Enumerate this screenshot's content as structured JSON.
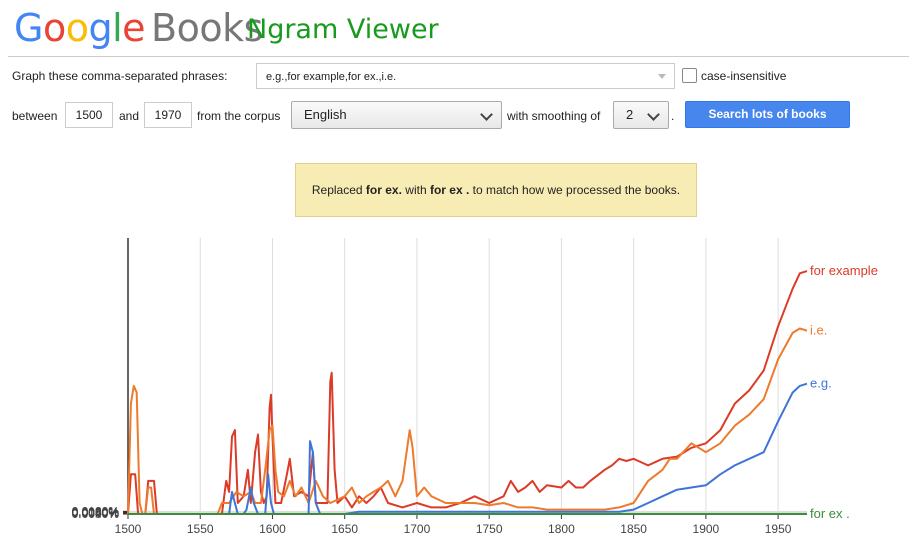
{
  "header": {
    "logo_google": "Google",
    "logo_books": "Books",
    "subtitle": "Ngram Viewer"
  },
  "form": {
    "phrases_label": "Graph these comma-separated phrases:",
    "phrases_value": "e.g.,for example,for ex.,i.e.",
    "case_insensitive_label": "case-insensitive",
    "case_insensitive_checked": false,
    "between_label": "between",
    "start_year": "1500",
    "and_label": "and",
    "end_year": "1970",
    "corpus_label": "from the corpus",
    "corpus_value": "English",
    "smoothing_label": "with smoothing of",
    "smoothing_value": "2",
    "period": ".",
    "search_button": "Search lots of books"
  },
  "notice": {
    "prefix": "Replaced",
    "from_phrase": "for ex.",
    "middle": "with",
    "to_phrase": "for ex .",
    "suffix": "to match how we processed the books."
  },
  "chart_data": {
    "type": "line",
    "title": "",
    "xlabel": "",
    "ylabel": "",
    "xlim": [
      1500,
      1970
    ],
    "ylim": [
      0,
      0.0125
    ],
    "x_ticks": [
      "1500",
      "1550",
      "1600",
      "1650",
      "1700",
      "1750",
      "1800",
      "1850",
      "1900",
      "1950"
    ],
    "y_ticks": [
      "0.0000%",
      "0.0020%",
      "0.0040%",
      "0.0060%",
      "0.0080%",
      "0.0100%",
      "0.0120%"
    ],
    "grid": true,
    "legend_placement": "right-end-of-lines",
    "series": [
      {
        "name": "for example",
        "color": "#db3b27",
        "points": [
          [
            1500,
            0
          ],
          [
            1502,
            0.0018
          ],
          [
            1505,
            0.0018
          ],
          [
            1507,
            0
          ],
          [
            1512,
            0
          ],
          [
            1514,
            0.0015
          ],
          [
            1518,
            0.0015
          ],
          [
            1520,
            0
          ],
          [
            1565,
            0
          ],
          [
            1568,
            0.0015
          ],
          [
            1570,
            0.001
          ],
          [
            1572,
            0.0035
          ],
          [
            1574,
            0.0038
          ],
          [
            1576,
            0.0005
          ],
          [
            1580,
            0.0008
          ],
          [
            1583,
            0.002
          ],
          [
            1585,
            0.0005
          ],
          [
            1588,
            0.0028
          ],
          [
            1590,
            0.0036
          ],
          [
            1592,
            0.001
          ],
          [
            1594,
            0.0005
          ],
          [
            1596,
            0.0008
          ],
          [
            1598,
            0.0048
          ],
          [
            1599,
            0.0054
          ],
          [
            1600,
            0.0035
          ],
          [
            1602,
            0.0005
          ],
          [
            1606,
            0.0005
          ],
          [
            1610,
            0.0018
          ],
          [
            1612,
            0.0025
          ],
          [
            1615,
            0.0008
          ],
          [
            1620,
            0.001
          ],
          [
            1625,
            0.0008
          ],
          [
            1628,
            0.0028
          ],
          [
            1630,
            0.0005
          ],
          [
            1638,
            0.0005
          ],
          [
            1640,
            0.006
          ],
          [
            1641,
            0.0064
          ],
          [
            1643,
            0.002
          ],
          [
            1645,
            0.0005
          ],
          [
            1650,
            0.0008
          ],
          [
            1655,
            0.0003
          ],
          [
            1660,
            0.0008
          ],
          [
            1665,
            0.0005
          ],
          [
            1670,
            0.0008
          ],
          [
            1675,
            0.0012
          ],
          [
            1680,
            0.0005
          ],
          [
            1690,
            0.0003
          ],
          [
            1700,
            0.0005
          ],
          [
            1710,
            0.0003
          ],
          [
            1720,
            0.0003
          ],
          [
            1730,
            0.0005
          ],
          [
            1740,
            0.0008
          ],
          [
            1750,
            0.0005
          ],
          [
            1760,
            0.0008
          ],
          [
            1765,
            0.0015
          ],
          [
            1770,
            0.001
          ],
          [
            1775,
            0.0012
          ],
          [
            1780,
            0.0015
          ],
          [
            1785,
            0.001
          ],
          [
            1790,
            0.0013
          ],
          [
            1800,
            0.0012
          ],
          [
            1805,
            0.0015
          ],
          [
            1810,
            0.0012
          ],
          [
            1815,
            0.0012
          ],
          [
            1820,
            0.0015
          ],
          [
            1830,
            0.002
          ],
          [
            1835,
            0.0022
          ],
          [
            1840,
            0.0025
          ],
          [
            1845,
            0.0024
          ],
          [
            1850,
            0.0025
          ],
          [
            1860,
            0.0022
          ],
          [
            1870,
            0.0025
          ],
          [
            1880,
            0.0026
          ],
          [
            1890,
            0.003
          ],
          [
            1900,
            0.0032
          ],
          [
            1910,
            0.0038
          ],
          [
            1920,
            0.005
          ],
          [
            1930,
            0.0056
          ],
          [
            1940,
            0.0065
          ],
          [
            1950,
            0.0085
          ],
          [
            1960,
            0.0102
          ],
          [
            1965,
            0.0109
          ],
          [
            1970,
            0.011
          ]
        ]
      },
      {
        "name": "i.e.",
        "color": "#ee7a2d",
        "points": [
          [
            1500,
            0
          ],
          [
            1502,
            0.005
          ],
          [
            1504,
            0.0058
          ],
          [
            1506,
            0.0055
          ],
          [
            1508,
            0.0005
          ],
          [
            1510,
            0
          ],
          [
            1512,
            0
          ],
          [
            1514,
            0.0012
          ],
          [
            1516,
            0.0012
          ],
          [
            1518,
            0
          ],
          [
            1562,
            0
          ],
          [
            1565,
            0.0005
          ],
          [
            1570,
            0.0005
          ],
          [
            1575,
            0.001
          ],
          [
            1580,
            0.0008
          ],
          [
            1585,
            0.001
          ],
          [
            1588,
            0.0005
          ],
          [
            1592,
            0.0005
          ],
          [
            1595,
            0.002
          ],
          [
            1598,
            0.0038
          ],
          [
            1600,
            0.004
          ],
          [
            1602,
            0.002
          ],
          [
            1604,
            0.001
          ],
          [
            1608,
            0.0008
          ],
          [
            1612,
            0.0015
          ],
          [
            1616,
            0.0008
          ],
          [
            1620,
            0.0012
          ],
          [
            1625,
            0.0005
          ],
          [
            1630,
            0.0015
          ],
          [
            1635,
            0.0008
          ],
          [
            1640,
            0.0005
          ],
          [
            1650,
            0.0008
          ],
          [
            1655,
            0.0012
          ],
          [
            1660,
            0.0005
          ],
          [
            1665,
            0.0008
          ],
          [
            1670,
            0.001
          ],
          [
            1675,
            0.0012
          ],
          [
            1680,
            0.0015
          ],
          [
            1685,
            0.0008
          ],
          [
            1690,
            0.0015
          ],
          [
            1695,
            0.0038
          ],
          [
            1697,
            0.003
          ],
          [
            1700,
            0.0008
          ],
          [
            1705,
            0.0012
          ],
          [
            1710,
            0.0008
          ],
          [
            1720,
            0.0005
          ],
          [
            1730,
            0.0005
          ],
          [
            1740,
            0.0005
          ],
          [
            1750,
            0.0004
          ],
          [
            1760,
            0.0005
          ],
          [
            1770,
            0.0003
          ],
          [
            1780,
            0.0003
          ],
          [
            1790,
            0.0002
          ],
          [
            1800,
            0.0002
          ],
          [
            1810,
            0.0002
          ],
          [
            1820,
            0.0002
          ],
          [
            1830,
            0.0002
          ],
          [
            1840,
            0.0003
          ],
          [
            1850,
            0.0005
          ],
          [
            1860,
            0.0015
          ],
          [
            1870,
            0.002
          ],
          [
            1875,
            0.0025
          ],
          [
            1880,
            0.0025
          ],
          [
            1890,
            0.0032
          ],
          [
            1900,
            0.0028
          ],
          [
            1910,
            0.0032
          ],
          [
            1920,
            0.004
          ],
          [
            1930,
            0.0045
          ],
          [
            1940,
            0.0052
          ],
          [
            1950,
            0.007
          ],
          [
            1960,
            0.0082
          ],
          [
            1965,
            0.0084
          ],
          [
            1970,
            0.0083
          ]
        ]
      },
      {
        "name": "e.g.",
        "color": "#3f74d8",
        "points": [
          [
            1500,
            0
          ],
          [
            1570,
            0
          ],
          [
            1572,
            0.001
          ],
          [
            1574,
            0.0005
          ],
          [
            1576,
            0
          ],
          [
            1580,
            0
          ],
          [
            1582,
            0.0002
          ],
          [
            1585,
            0.0012
          ],
          [
            1587,
            0.0005
          ],
          [
            1590,
            0
          ],
          [
            1595,
            0
          ],
          [
            1597,
            0.0018
          ],
          [
            1599,
            0.0005
          ],
          [
            1601,
            0
          ],
          [
            1625,
            0
          ],
          [
            1626,
            0.0033
          ],
          [
            1628,
            0.0028
          ],
          [
            1630,
            0.0005
          ],
          [
            1633,
            0
          ],
          [
            1650,
            0
          ],
          [
            1660,
            0.0001
          ],
          [
            1700,
            0.0001
          ],
          [
            1750,
            0.0001
          ],
          [
            1800,
            0.0001
          ],
          [
            1840,
            0.0001
          ],
          [
            1850,
            0.0002
          ],
          [
            1860,
            0.0005
          ],
          [
            1870,
            0.0008
          ],
          [
            1880,
            0.0011
          ],
          [
            1890,
            0.0012
          ],
          [
            1900,
            0.0013
          ],
          [
            1910,
            0.0018
          ],
          [
            1920,
            0.0022
          ],
          [
            1930,
            0.0025
          ],
          [
            1940,
            0.0028
          ],
          [
            1950,
            0.0042
          ],
          [
            1960,
            0.0055
          ],
          [
            1965,
            0.0058
          ],
          [
            1970,
            0.0059
          ]
        ]
      },
      {
        "name": "for ex .",
        "color": "#3d8b3d",
        "points": [
          [
            1500,
            0
          ],
          [
            1970,
            0
          ]
        ]
      }
    ]
  }
}
